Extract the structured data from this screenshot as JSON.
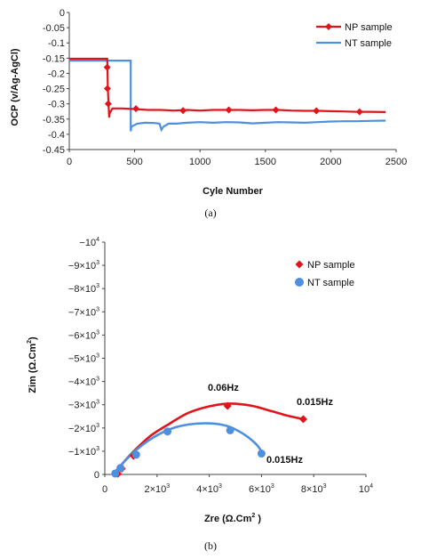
{
  "chart_data": [
    {
      "type": "line",
      "xlabel": "Cyle Number",
      "ylabel": "OCP (v/Ag-AgCl)",
      "xlim": [
        0,
        2500
      ],
      "ylim": [
        -0.45,
        0
      ],
      "xticks": [
        "0",
        "500",
        "1000",
        "1500",
        "2000",
        "2500"
      ],
      "yticks": [
        "0",
        "-0.05",
        "-0.1",
        "-0.15",
        "-0.2",
        "-0.25",
        "-0.3",
        "-0.35",
        "-0.4",
        "-0.45"
      ],
      "legend_position": "top-right",
      "series": [
        {
          "name": "NP sample",
          "color": "#e0151b",
          "marker": "diamond",
          "line": [
            [
              0,
              -0.152
            ],
            [
              290,
              -0.152
            ],
            [
              292,
              -0.18
            ],
            [
              295,
              -0.25
            ],
            [
              300,
              -0.3
            ],
            [
              305,
              -0.345
            ],
            [
              310,
              -0.33
            ],
            [
              330,
              -0.315
            ],
            [
              400,
              -0.315
            ],
            [
              500,
              -0.317
            ],
            [
              600,
              -0.32
            ],
            [
              700,
              -0.32
            ],
            [
              800,
              -0.322
            ],
            [
              900,
              -0.32
            ],
            [
              1000,
              -0.322
            ],
            [
              1100,
              -0.32
            ],
            [
              1200,
              -0.32
            ],
            [
              1300,
              -0.32
            ],
            [
              1400,
              -0.321
            ],
            [
              1500,
              -0.32
            ],
            [
              1600,
              -0.32
            ],
            [
              1700,
              -0.322
            ],
            [
              1800,
              -0.323
            ],
            [
              1900,
              -0.323
            ],
            [
              2000,
              -0.324
            ],
            [
              2100,
              -0.325
            ],
            [
              2200,
              -0.326
            ],
            [
              2300,
              -0.326
            ],
            [
              2420,
              -0.327
            ]
          ],
          "markers": [
            [
              290,
              -0.18
            ],
            [
              292,
              -0.25
            ],
            [
              298,
              -0.3
            ],
            [
              510,
              -0.316
            ],
            [
              870,
              -0.322
            ],
            [
              1220,
              -0.32
            ],
            [
              1580,
              -0.32
            ],
            [
              1890,
              -0.323
            ],
            [
              2220,
              -0.326
            ]
          ]
        },
        {
          "name": "NT sample",
          "color": "#4f8fe0",
          "marker": "none",
          "line": [
            [
              0,
              -0.158
            ],
            [
              470,
              -0.158
            ],
            [
              470,
              -0.39
            ],
            [
              475,
              -0.375
            ],
            [
              520,
              -0.365
            ],
            [
              580,
              -0.362
            ],
            [
              650,
              -0.363
            ],
            [
              690,
              -0.365
            ],
            [
              705,
              -0.385
            ],
            [
              720,
              -0.375
            ],
            [
              760,
              -0.365
            ],
            [
              820,
              -0.365
            ],
            [
              900,
              -0.362
            ],
            [
              1000,
              -0.36
            ],
            [
              1100,
              -0.362
            ],
            [
              1200,
              -0.36
            ],
            [
              1300,
              -0.361
            ],
            [
              1400,
              -0.364
            ],
            [
              1500,
              -0.362
            ],
            [
              1600,
              -0.36
            ],
            [
              1700,
              -0.361
            ],
            [
              1800,
              -0.362
            ],
            [
              1900,
              -0.36
            ],
            [
              2000,
              -0.358
            ],
            [
              2100,
              -0.357
            ],
            [
              2200,
              -0.357
            ],
            [
              2300,
              -0.356
            ],
            [
              2420,
              -0.355
            ]
          ]
        }
      ],
      "caption": "(a)"
    },
    {
      "type": "scatter",
      "xlabel": "Zre (Ω.Cm²)",
      "ylabel": "Zim (Ω.Cm²)",
      "xlim": [
        0,
        10000
      ],
      "ylim": [
        0,
        -10000
      ],
      "legend_position": "top-right",
      "series": [
        {
          "name": "NP sample",
          "color": "#e0151b",
          "marker": "diamond",
          "points": [
            [
              500,
              -30
            ],
            [
              650,
              -250
            ],
            [
              1100,
              -800
            ],
            [
              4700,
              -2950
            ],
            [
              7600,
              -2380
            ]
          ],
          "fit": [
            [
              350,
              0
            ],
            [
              700,
              -500
            ],
            [
              1200,
              -1100
            ],
            [
              1800,
              -1700
            ],
            [
              2500,
              -2200
            ],
            [
              3200,
              -2650
            ],
            [
              4000,
              -2930
            ],
            [
              4800,
              -3050
            ],
            [
              5600,
              -2960
            ],
            [
              6400,
              -2720
            ],
            [
              7000,
              -2530
            ],
            [
              7600,
              -2380
            ]
          ]
        },
        {
          "name": "NT sample",
          "color": "#4f8fe0",
          "marker": "circle",
          "points": [
            [
              400,
              -40
            ],
            [
              600,
              -280
            ],
            [
              1200,
              -850
            ],
            [
              2400,
              -1850
            ],
            [
              4800,
              -1900
            ],
            [
              6000,
              -900
            ]
          ],
          "fit": [
            [
              300,
              0
            ],
            [
              700,
              -500
            ],
            [
              1200,
              -1050
            ],
            [
              1800,
              -1550
            ],
            [
              2500,
              -1950
            ],
            [
              3200,
              -2150
            ],
            [
              4000,
              -2200
            ],
            [
              4700,
              -2080
            ],
            [
              5300,
              -1750
            ],
            [
              5800,
              -1300
            ],
            [
              6050,
              -900
            ]
          ]
        }
      ],
      "annotations": [
        "0.06Hz",
        "0.015Hz",
        "0.015Hz"
      ],
      "caption": "(b)"
    }
  ],
  "panel_b": {
    "neg_sign": "−",
    "times": "×",
    "zero": "0",
    "ten": "10",
    "three": "3",
    "four": "4",
    "axis_x_label": "Zre (Ω.Cm",
    "axis_y_label": "Zim (Ω.Cm",
    "squared": "2",
    "close_paren": ")"
  }
}
